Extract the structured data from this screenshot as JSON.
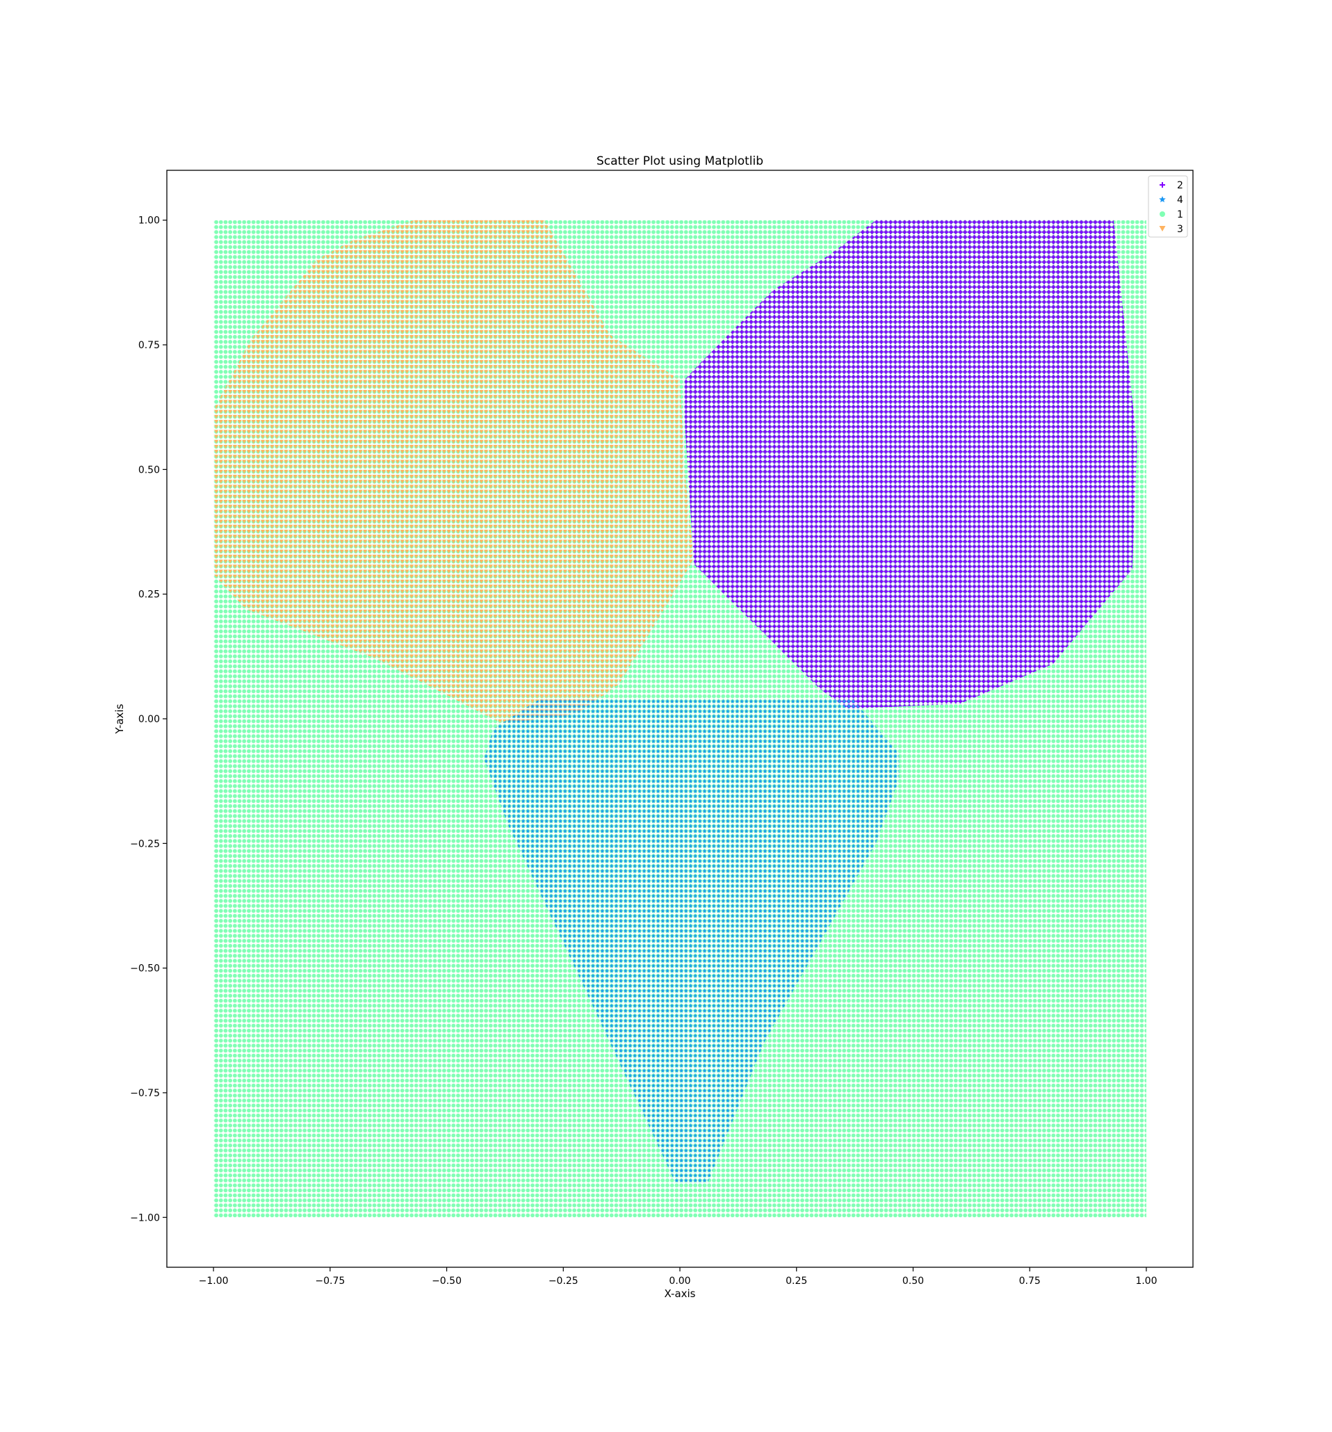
{
  "chart_data": {
    "type": "scatter",
    "title": "Scatter Plot using Matplotlib",
    "xlabel": "X-axis",
    "ylabel": "Y-axis",
    "xlim": [
      -1.1,
      1.1
    ],
    "ylim": [
      -1.1,
      1.1
    ],
    "grid": false,
    "legend_position": "top-right",
    "grid_points": {
      "x_range": [
        -1.0,
        1.0
      ],
      "y_range": [
        -1.0,
        1.0
      ],
      "x_step": 0.01,
      "y_step": 0.01
    },
    "x_ticks": [
      {
        "value": -1.0,
        "label": "−1.00"
      },
      {
        "value": -0.75,
        "label": "−0.75"
      },
      {
        "value": -0.5,
        "label": "−0.50"
      },
      {
        "value": -0.25,
        "label": "−0.25"
      },
      {
        "value": 0.0,
        "label": "0.00"
      },
      {
        "value": 0.25,
        "label": "0.25"
      },
      {
        "value": 0.5,
        "label": "0.50"
      },
      {
        "value": 0.75,
        "label": "0.75"
      },
      {
        "value": 1.0,
        "label": "1.00"
      }
    ],
    "y_ticks": [
      {
        "value": 1.0,
        "label": "1.00"
      },
      {
        "value": 0.75,
        "label": "0.75"
      },
      {
        "value": 0.5,
        "label": "0.50"
      },
      {
        "value": 0.25,
        "label": "0.25"
      },
      {
        "value": 0.0,
        "label": "0.00"
      },
      {
        "value": -0.25,
        "label": "−0.25"
      },
      {
        "value": -0.5,
        "label": "−0.50"
      },
      {
        "value": -0.75,
        "label": "−0.75"
      },
      {
        "value": -1.0,
        "label": "−1.00"
      }
    ],
    "series": [
      {
        "name": "2",
        "marker": "plus",
        "color": "#8000ff",
        "region": [
          [
            0.42,
            1.0
          ],
          [
            0.93,
            1.0
          ],
          [
            0.95,
            0.82
          ],
          [
            0.98,
            0.55
          ],
          [
            0.97,
            0.3
          ],
          [
            0.8,
            0.11
          ],
          [
            0.6,
            0.03
          ],
          [
            0.36,
            0.02
          ],
          [
            0.3,
            0.06
          ],
          [
            0.03,
            0.31
          ],
          [
            0.01,
            0.6
          ],
          [
            0.01,
            0.68
          ],
          [
            0.05,
            0.72
          ],
          [
            0.2,
            0.86
          ],
          [
            0.32,
            0.93
          ]
        ]
      },
      {
        "name": "4",
        "marker": "star",
        "color": "#1996f3",
        "region": [
          [
            -0.3,
            0.04
          ],
          [
            0.37,
            0.04
          ],
          [
            0.47,
            -0.07
          ],
          [
            0.47,
            -0.12
          ],
          [
            0.42,
            -0.25
          ],
          [
            0.18,
            -0.65
          ],
          [
            0.06,
            -0.93
          ],
          [
            -0.01,
            -0.93
          ],
          [
            -0.2,
            -0.55
          ],
          [
            -0.37,
            -0.21
          ],
          [
            -0.42,
            -0.08
          ],
          [
            -0.4,
            -0.02
          ]
        ]
      },
      {
        "name": "1",
        "marker": "circle",
        "color": "#80ffb4",
        "region": [
          [
            -1.0,
            1.0
          ],
          [
            1.0,
            1.0
          ],
          [
            1.0,
            -1.0
          ],
          [
            -1.0,
            -1.0
          ]
        ]
      },
      {
        "name": "3",
        "marker": "triangle_down",
        "color": "#ffb360",
        "region": [
          [
            -0.57,
            1.0
          ],
          [
            -0.29,
            1.0
          ],
          [
            -0.15,
            0.77
          ],
          [
            0.0,
            0.68
          ],
          [
            0.01,
            0.5
          ],
          [
            0.03,
            0.32
          ],
          [
            -0.13,
            0.07
          ],
          [
            -0.22,
            0.01
          ],
          [
            -0.38,
            -0.01
          ],
          [
            -0.65,
            0.12
          ],
          [
            -0.93,
            0.22
          ],
          [
            -1.0,
            0.29
          ],
          [
            -1.0,
            0.62
          ],
          [
            -0.92,
            0.76
          ],
          [
            -0.78,
            0.92
          ],
          [
            -0.7,
            0.96
          ]
        ]
      }
    ]
  }
}
